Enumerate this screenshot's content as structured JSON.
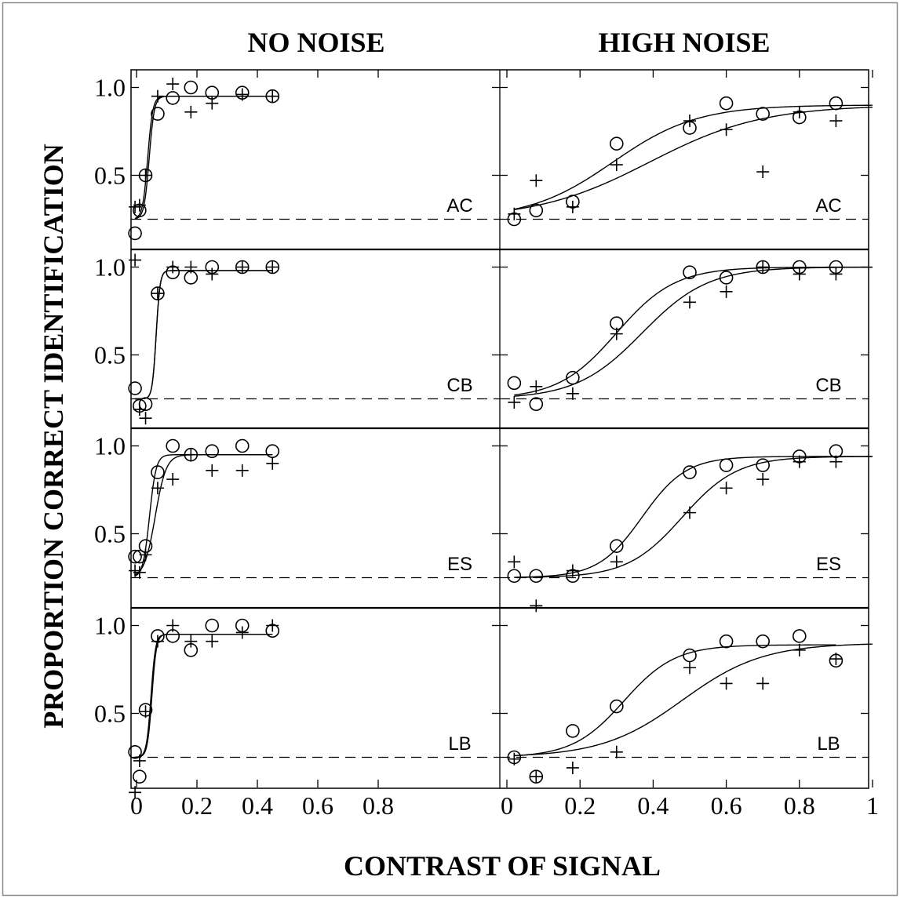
{
  "figure": {
    "column_titles": [
      "NO NOISE",
      "HIGH NOISE"
    ],
    "xlabel": "CONTRAST OF SIGNAL",
    "ylabel": "PROPORTION CORRECT IDENTIFICATION",
    "subjects": [
      "AC",
      "CB",
      "ES",
      "LB"
    ]
  },
  "axes": {
    "left_xticks": [
      "0",
      "0.2",
      "0.4",
      "0.6",
      "0.8"
    ],
    "right_xticks": [
      "0",
      "0.2",
      "0.4",
      "0.6",
      "0.8",
      "1"
    ],
    "yticks": [
      "0.5",
      "1.0"
    ]
  },
  "chart_data": [
    {
      "type": "scatter",
      "panel": "AC-no-noise",
      "subject": "AC",
      "condition": "NO NOISE",
      "xlim": [
        -0.01,
        1.0
      ],
      "ylim": [
        0.0,
        1.1
      ],
      "chance": 0.25,
      "series": [
        {
          "marker": "circle",
          "x": [
            -0.005,
            0.01,
            0.03,
            0.07,
            0.12,
            0.18,
            0.25,
            0.35,
            0.45
          ],
          "y": [
            0.17,
            0.3,
            0.5,
            0.85,
            0.94,
            1.0,
            0.97,
            0.97,
            0.95
          ],
          "fit": {
            "type": "logistic",
            "lo": 0.25,
            "hi": 0.95,
            "x50": 0.042,
            "s": 0.0085,
            "xmax": 0.45
          }
        },
        {
          "marker": "plus",
          "x": [
            -0.005,
            0.01,
            0.03,
            0.07,
            0.12,
            0.18,
            0.25,
            0.35,
            0.45
          ],
          "y": [
            0.32,
            0.33,
            0.5,
            0.95,
            1.02,
            0.86,
            0.91,
            0.96,
            0.95
          ],
          "fit": {
            "type": "logistic",
            "lo": 0.25,
            "hi": 0.95,
            "x50": 0.037,
            "s": 0.0085,
            "xmax": 0.45
          }
        }
      ]
    },
    {
      "type": "scatter",
      "panel": "AC-high-noise",
      "subject": "AC",
      "condition": "HIGH NOISE",
      "xlim": [
        0.0,
        1.0
      ],
      "ylim": [
        0.0,
        1.1
      ],
      "chance": 0.25,
      "series": [
        {
          "marker": "circle",
          "x": [
            0.02,
            0.08,
            0.18,
            0.3,
            0.5,
            0.6,
            0.7,
            0.8,
            0.9
          ],
          "y": [
            0.25,
            0.3,
            0.35,
            0.68,
            0.77,
            0.91,
            0.85,
            0.83,
            0.91
          ],
          "fit": {
            "type": "logistic",
            "lo": 0.25,
            "hi": 0.9,
            "x50": 0.29,
            "s": 0.115,
            "xmax": 1.0
          }
        },
        {
          "marker": "plus",
          "x": [
            0.02,
            0.08,
            0.18,
            0.3,
            0.5,
            0.6,
            0.7,
            0.8,
            0.9
          ],
          "y": [
            0.28,
            0.47,
            0.32,
            0.56,
            0.81,
            0.76,
            0.52,
            0.86,
            0.81
          ],
          "fit": {
            "type": "logistic",
            "lo": 0.25,
            "hi": 0.9,
            "x50": 0.39,
            "s": 0.155,
            "xmax": 1.0
          }
        }
      ]
    },
    {
      "type": "scatter",
      "panel": "CB-no-noise",
      "subject": "CB",
      "condition": "NO NOISE",
      "xlim": [
        -0.01,
        1.0
      ],
      "ylim": [
        0.0,
        1.1
      ],
      "chance": 0.25,
      "series": [
        {
          "marker": "circle",
          "x": [
            -0.005,
            0.01,
            0.03,
            0.07,
            0.12,
            0.18,
            0.25,
            0.35,
            0.45
          ],
          "y": [
            0.31,
            0.21,
            0.22,
            0.85,
            0.97,
            0.94,
            1.0,
            1.0,
            1.0
          ],
          "fit": {
            "type": "logistic",
            "lo": 0.25,
            "hi": 0.98,
            "x50": 0.065,
            "s": 0.0065,
            "xmax": 0.45
          }
        },
        {
          "marker": "plus",
          "x": [
            -0.005,
            0.01,
            0.03,
            0.07,
            0.12,
            0.18,
            0.25,
            0.35,
            0.45
          ],
          "y": [
            1.04,
            0.19,
            0.14,
            0.85,
            1.0,
            1.0,
            0.96,
            1.0,
            1.0
          ],
          "fit": {
            "type": "logistic",
            "lo": 0.25,
            "hi": 0.98,
            "x50": 0.065,
            "s": 0.0065,
            "xmax": 0.45
          }
        }
      ]
    },
    {
      "type": "scatter",
      "panel": "CB-high-noise",
      "subject": "CB",
      "condition": "HIGH NOISE",
      "xlim": [
        0.0,
        1.0
      ],
      "ylim": [
        0.0,
        1.1
      ],
      "chance": 0.25,
      "series": [
        {
          "marker": "circle",
          "x": [
            0.02,
            0.08,
            0.18,
            0.3,
            0.5,
            0.6,
            0.7,
            0.8,
            0.9
          ],
          "y": [
            0.34,
            0.22,
            0.37,
            0.68,
            0.97,
            0.94,
            1.0,
            1.0,
            1.0
          ],
          "fit": {
            "type": "logistic",
            "lo": 0.25,
            "hi": 1.0,
            "x50": 0.3,
            "s": 0.08,
            "xmax": 1.0
          }
        },
        {
          "marker": "plus",
          "x": [
            0.02,
            0.08,
            0.18,
            0.3,
            0.5,
            0.6,
            0.7,
            0.8,
            0.9
          ],
          "y": [
            0.23,
            0.32,
            0.28,
            0.62,
            0.8,
            0.86,
            1.0,
            0.96,
            0.96
          ],
          "fit": {
            "type": "logistic",
            "lo": 0.25,
            "hi": 1.0,
            "x50": 0.37,
            "s": 0.09,
            "xmax": 1.0
          }
        }
      ]
    },
    {
      "type": "scatter",
      "panel": "ES-no-noise",
      "subject": "ES",
      "condition": "NO NOISE",
      "xlim": [
        -0.01,
        1.0
      ],
      "ylim": [
        0.0,
        1.1
      ],
      "chance": 0.25,
      "series": [
        {
          "marker": "circle",
          "x": [
            -0.005,
            0.01,
            0.03,
            0.07,
            0.12,
            0.18,
            0.25,
            0.35,
            0.45
          ],
          "y": [
            0.37,
            0.37,
            0.43,
            0.85,
            1.0,
            0.95,
            0.97,
            1.0,
            0.97
          ],
          "fit": {
            "type": "logistic",
            "lo": 0.25,
            "hi": 0.95,
            "x50": 0.043,
            "s": 0.011,
            "xmax": 0.45
          }
        },
        {
          "marker": "plus",
          "x": [
            -0.005,
            0.01,
            0.03,
            0.07,
            0.12,
            0.18,
            0.25,
            0.35,
            0.45
          ],
          "y": [
            0.29,
            0.28,
            0.38,
            0.76,
            0.81,
            0.95,
            0.86,
            0.86,
            0.9
          ],
          "fit": {
            "type": "logistic",
            "lo": 0.25,
            "hi": 0.95,
            "x50": 0.062,
            "s": 0.018,
            "xmax": 0.45
          }
        }
      ]
    },
    {
      "type": "scatter",
      "panel": "ES-high-noise",
      "subject": "ES",
      "condition": "HIGH NOISE",
      "xlim": [
        0.0,
        1.0
      ],
      "ylim": [
        0.0,
        1.1
      ],
      "chance": 0.25,
      "series": [
        {
          "marker": "circle",
          "x": [
            0.02,
            0.08,
            0.18,
            0.3,
            0.5,
            0.6,
            0.7,
            0.8,
            0.9
          ],
          "y": [
            0.26,
            0.26,
            0.26,
            0.43,
            0.85,
            0.89,
            0.89,
            0.94,
            0.97
          ],
          "fit": {
            "type": "logistic",
            "lo": 0.25,
            "hi": 0.94,
            "x50": 0.37,
            "s": 0.06,
            "xmax": 1.0
          }
        },
        {
          "marker": "plus",
          "x": [
            0.02,
            0.08,
            0.18,
            0.3,
            0.5,
            0.6,
            0.7,
            0.8,
            0.9
          ],
          "y": [
            0.34,
            0.09,
            0.29,
            0.34,
            0.62,
            0.76,
            0.81,
            0.91,
            0.91
          ],
          "fit": {
            "type": "logistic",
            "lo": 0.25,
            "hi": 0.94,
            "x50": 0.48,
            "s": 0.075,
            "xmax": 1.0
          }
        }
      ]
    },
    {
      "type": "scatter",
      "panel": "LB-no-noise",
      "subject": "LB",
      "condition": "NO NOISE",
      "xlim": [
        -0.01,
        1.0
      ],
      "ylim": [
        0.0,
        1.1
      ],
      "chance": 0.25,
      "series": [
        {
          "marker": "circle",
          "x": [
            -0.005,
            0.01,
            0.03,
            0.07,
            0.12,
            0.18,
            0.25,
            0.35,
            0.45
          ],
          "y": [
            0.28,
            0.14,
            0.52,
            0.94,
            0.94,
            0.86,
            1.0,
            1.0,
            0.97
          ],
          "fit": {
            "type": "logistic",
            "lo": 0.25,
            "hi": 0.95,
            "x50": 0.048,
            "s": 0.0075,
            "xmax": 0.45
          }
        },
        {
          "marker": "plus",
          "x": [
            -0.005,
            0.01,
            0.03,
            0.07,
            0.12,
            0.18,
            0.25,
            0.35,
            0.45
          ],
          "y": [
            0.05,
            0.23,
            0.51,
            0.91,
            1.0,
            0.91,
            0.91,
            0.96,
            1.0
          ],
          "fit": {
            "type": "logistic",
            "lo": 0.25,
            "hi": 0.95,
            "x50": 0.051,
            "s": 0.0075,
            "xmax": 0.45
          }
        }
      ]
    },
    {
      "type": "scatter",
      "panel": "LB-high-noise",
      "subject": "LB",
      "condition": "HIGH NOISE",
      "xlim": [
        0.0,
        1.0
      ],
      "ylim": [
        0.0,
        1.1
      ],
      "chance": 0.25,
      "series": [
        {
          "marker": "circle",
          "x": [
            0.02,
            0.08,
            0.18,
            0.3,
            0.5,
            0.6,
            0.7,
            0.8,
            0.9
          ],
          "y": [
            0.25,
            0.14,
            0.4,
            0.54,
            0.83,
            0.91,
            0.91,
            0.94,
            0.8
          ],
          "fit": {
            "type": "logistic",
            "lo": 0.25,
            "hi": 0.89,
            "x50": 0.32,
            "s": 0.07,
            "xmax": 0.9
          }
        },
        {
          "marker": "plus",
          "x": [
            0.02,
            0.08,
            0.18,
            0.3,
            0.5,
            0.6,
            0.7,
            0.8,
            0.9
          ],
          "y": [
            0.24,
            0.14,
            0.19,
            0.28,
            0.76,
            0.67,
            0.67,
            0.86,
            0.81
          ],
          "fit": {
            "type": "logistic",
            "lo": 0.25,
            "hi": 0.9,
            "x50": 0.48,
            "s": 0.11,
            "xmax": 1.0
          }
        }
      ]
    }
  ]
}
